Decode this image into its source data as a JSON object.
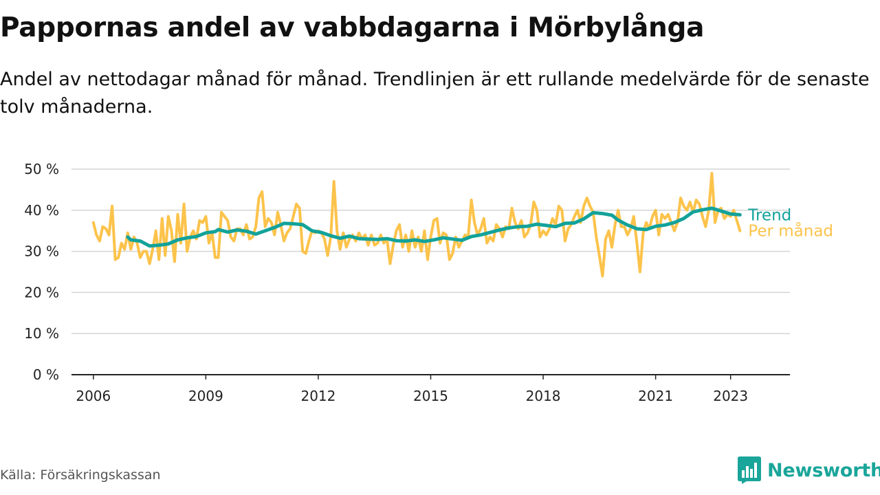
{
  "header": {
    "title": "Pappornas andel av vabbdagarna i Mörbylånga",
    "subtitle": "Andel av nettodagar månad för månad. Trendlinjen är ett rullande medelvärde för de senaste tolv månaderna."
  },
  "footer": {
    "source": "Källa: Försäkringskassan",
    "brand": "Newsworthy"
  },
  "colors": {
    "monthly": "#fcc34b",
    "trend": "#13a29a",
    "grid": "#d4d4d4",
    "axis": "#222222",
    "text": "#111111",
    "source": "#555555",
    "brand": "#1aa59a"
  },
  "chart_data": {
    "type": "line",
    "title": "Pappornas andel av vabbdagarna i Mörbylånga",
    "xlabel": "",
    "ylabel": "",
    "xlim": [
      "2005-06",
      "2024-08"
    ],
    "ylim": [
      0,
      50
    ],
    "y_unit": " %",
    "grid": "horizontal",
    "legend": "inline labels at right end of lines",
    "x_ticks": [
      "2006",
      "2009",
      "2012",
      "2015",
      "2018",
      "2021",
      "2023"
    ],
    "y_ticks": [
      0,
      10,
      20,
      30,
      40,
      50
    ],
    "series": [
      {
        "name": "Per månad",
        "color": "#fcc34b",
        "points": [
          [
            "2006-01",
            37.0
          ],
          [
            "2006-02",
            34.0
          ],
          [
            "2006-03",
            32.5
          ],
          [
            "2006-04",
            36.0
          ],
          [
            "2006-05",
            35.5
          ],
          [
            "2006-06",
            34.0
          ],
          [
            "2006-07",
            41.0
          ],
          [
            "2006-08",
            28.0
          ],
          [
            "2006-09",
            28.5
          ],
          [
            "2006-10",
            32.0
          ],
          [
            "2006-11",
            30.5
          ],
          [
            "2006-12",
            34.5
          ],
          [
            "2007-01",
            30.5
          ],
          [
            "2007-02",
            33.5
          ],
          [
            "2007-03",
            32.0
          ],
          [
            "2007-04",
            28.5
          ],
          [
            "2007-05",
            30.0
          ],
          [
            "2007-06",
            30.0
          ],
          [
            "2007-07",
            27.0
          ],
          [
            "2007-08",
            30.5
          ],
          [
            "2007-09",
            35.0
          ],
          [
            "2007-10",
            28.0
          ],
          [
            "2007-11",
            38.0
          ],
          [
            "2007-12",
            29.0
          ],
          [
            "2008-01",
            38.5
          ],
          [
            "2008-02",
            35.0
          ],
          [
            "2008-03",
            27.5
          ],
          [
            "2008-04",
            39.0
          ],
          [
            "2008-05",
            32.0
          ],
          [
            "2008-06",
            41.5
          ],
          [
            "2008-07",
            30.0
          ],
          [
            "2008-08",
            33.5
          ],
          [
            "2008-09",
            35.0
          ],
          [
            "2008-10",
            33.0
          ],
          [
            "2008-11",
            37.5
          ],
          [
            "2008-12",
            37.0
          ],
          [
            "2009-01",
            38.5
          ],
          [
            "2009-02",
            32.0
          ],
          [
            "2009-03",
            34.5
          ],
          [
            "2009-04",
            28.5
          ],
          [
            "2009-05",
            28.5
          ],
          [
            "2009-06",
            39.5
          ],
          [
            "2009-07",
            38.5
          ],
          [
            "2009-08",
            37.5
          ],
          [
            "2009-09",
            33.5
          ],
          [
            "2009-10",
            32.5
          ],
          [
            "2009-11",
            35.5
          ],
          [
            "2009-12",
            35.5
          ],
          [
            "2010-01",
            34.0
          ],
          [
            "2010-02",
            36.5
          ],
          [
            "2010-03",
            33.0
          ],
          [
            "2010-04",
            33.5
          ],
          [
            "2010-05",
            36.0
          ],
          [
            "2010-06",
            43.0
          ],
          [
            "2010-07",
            44.5
          ],
          [
            "2010-08",
            36.0
          ],
          [
            "2010-09",
            38.0
          ],
          [
            "2010-10",
            37.0
          ],
          [
            "2010-11",
            34.0
          ],
          [
            "2010-12",
            39.5
          ],
          [
            "2011-01",
            36.5
          ],
          [
            "2011-02",
            32.5
          ],
          [
            "2011-03",
            34.5
          ],
          [
            "2011-04",
            35.5
          ],
          [
            "2011-05",
            38.5
          ],
          [
            "2011-06",
            41.5
          ],
          [
            "2011-07",
            40.5
          ],
          [
            "2011-08",
            30.0
          ],
          [
            "2011-09",
            29.5
          ],
          [
            "2011-10",
            32.5
          ],
          [
            "2011-11",
            35.0
          ],
          [
            "2011-12",
            34.5
          ],
          [
            "2012-01",
            35.0
          ],
          [
            "2012-02",
            34.5
          ],
          [
            "2012-03",
            33.0
          ],
          [
            "2012-04",
            29.0
          ],
          [
            "2012-05",
            33.5
          ],
          [
            "2012-06",
            47.0
          ],
          [
            "2012-07",
            35.0
          ],
          [
            "2012-08",
            30.5
          ],
          [
            "2012-09",
            34.5
          ],
          [
            "2012-10",
            31.0
          ],
          [
            "2012-11",
            33.0
          ],
          [
            "2012-12",
            34.0
          ],
          [
            "2013-01",
            32.5
          ],
          [
            "2013-02",
            34.5
          ],
          [
            "2013-03",
            33.0
          ],
          [
            "2013-04",
            34.0
          ],
          [
            "2013-05",
            31.5
          ],
          [
            "2013-06",
            34.0
          ],
          [
            "2013-07",
            31.5
          ],
          [
            "2013-08",
            32.0
          ],
          [
            "2013-09",
            34.0
          ],
          [
            "2013-10",
            32.0
          ],
          [
            "2013-11",
            33.0
          ],
          [
            "2013-12",
            27.0
          ],
          [
            "2014-01",
            31.5
          ],
          [
            "2014-02",
            35.0
          ],
          [
            "2014-03",
            36.5
          ],
          [
            "2014-04",
            31.0
          ],
          [
            "2014-05",
            34.0
          ],
          [
            "2014-06",
            30.0
          ],
          [
            "2014-07",
            35.0
          ],
          [
            "2014-08",
            31.0
          ],
          [
            "2014-09",
            33.5
          ],
          [
            "2014-10",
            30.0
          ],
          [
            "2014-11",
            35.0
          ],
          [
            "2014-12",
            28.0
          ],
          [
            "2015-01",
            33.5
          ],
          [
            "2015-02",
            37.5
          ],
          [
            "2015-03",
            38.0
          ],
          [
            "2015-04",
            32.0
          ],
          [
            "2015-05",
            34.5
          ],
          [
            "2015-06",
            34.0
          ],
          [
            "2015-07",
            28.0
          ],
          [
            "2015-08",
            29.5
          ],
          [
            "2015-09",
            33.5
          ],
          [
            "2015-10",
            31.0
          ],
          [
            "2015-11",
            32.5
          ],
          [
            "2015-12",
            34.0
          ],
          [
            "2016-01",
            33.5
          ],
          [
            "2016-02",
            42.5
          ],
          [
            "2016-03",
            37.0
          ],
          [
            "2016-04",
            34.0
          ],
          [
            "2016-05",
            35.5
          ],
          [
            "2016-06",
            38.0
          ],
          [
            "2016-07",
            32.0
          ],
          [
            "2016-08",
            33.5
          ],
          [
            "2016-09",
            32.5
          ],
          [
            "2016-10",
            36.5
          ],
          [
            "2016-11",
            35.5
          ],
          [
            "2016-12",
            33.5
          ],
          [
            "2017-01",
            36.0
          ],
          [
            "2017-02",
            35.5
          ],
          [
            "2017-03",
            40.5
          ],
          [
            "2017-04",
            37.0
          ],
          [
            "2017-05",
            35.5
          ],
          [
            "2017-06",
            37.5
          ],
          [
            "2017-07",
            33.5
          ],
          [
            "2017-08",
            34.5
          ],
          [
            "2017-09",
            36.5
          ],
          [
            "2017-10",
            42.0
          ],
          [
            "2017-11",
            40.0
          ],
          [
            "2017-12",
            33.5
          ],
          [
            "2018-01",
            35.0
          ],
          [
            "2018-02",
            34.0
          ],
          [
            "2018-03",
            35.5
          ],
          [
            "2018-04",
            38.0
          ],
          [
            "2018-05",
            36.5
          ],
          [
            "2018-06",
            41.0
          ],
          [
            "2018-07",
            40.0
          ],
          [
            "2018-08",
            32.5
          ],
          [
            "2018-09",
            35.5
          ],
          [
            "2018-10",
            36.5
          ],
          [
            "2018-11",
            38.5
          ],
          [
            "2018-12",
            40.0
          ],
          [
            "2019-01",
            37.0
          ],
          [
            "2019-02",
            41.0
          ],
          [
            "2019-03",
            43.0
          ],
          [
            "2019-04",
            41.0
          ],
          [
            "2019-05",
            39.5
          ],
          [
            "2019-06",
            33.5
          ],
          [
            "2019-07",
            29.0
          ],
          [
            "2019-08",
            24.0
          ],
          [
            "2019-09",
            33.0
          ],
          [
            "2019-10",
            35.0
          ],
          [
            "2019-11",
            31.0
          ],
          [
            "2019-12",
            36.5
          ],
          [
            "2020-01",
            40.0
          ],
          [
            "2020-02",
            36.0
          ],
          [
            "2020-03",
            36.0
          ],
          [
            "2020-04",
            34.0
          ],
          [
            "2020-05",
            35.5
          ],
          [
            "2020-06",
            38.5
          ],
          [
            "2020-07",
            32.0
          ],
          [
            "2020-08",
            25.0
          ],
          [
            "2020-09",
            34.5
          ],
          [
            "2020-10",
            37.0
          ],
          [
            "2020-11",
            35.5
          ],
          [
            "2020-12",
            38.5
          ],
          [
            "2021-01",
            40.0
          ],
          [
            "2021-02",
            34.0
          ],
          [
            "2021-03",
            39.0
          ],
          [
            "2021-04",
            38.0
          ],
          [
            "2021-05",
            39.0
          ],
          [
            "2021-06",
            37.0
          ],
          [
            "2021-07",
            35.0
          ],
          [
            "2021-08",
            37.0
          ],
          [
            "2021-09",
            43.0
          ],
          [
            "2021-10",
            41.0
          ],
          [
            "2021-11",
            40.0
          ],
          [
            "2021-12",
            42.0
          ],
          [
            "2022-01",
            39.5
          ],
          [
            "2022-02",
            42.5
          ],
          [
            "2022-03",
            41.5
          ],
          [
            "2022-04",
            38.5
          ],
          [
            "2022-05",
            36.0
          ],
          [
            "2022-06",
            40.0
          ],
          [
            "2022-07",
            49.0
          ],
          [
            "2022-08",
            37.0
          ],
          [
            "2022-09",
            40.0
          ],
          [
            "2022-10",
            40.5
          ],
          [
            "2022-11",
            38.0
          ],
          [
            "2022-12",
            39.0
          ],
          [
            "2023-01",
            38.5
          ],
          [
            "2023-02",
            40.0
          ],
          [
            "2023-03",
            37.5
          ],
          [
            "2023-04",
            35.0
          ]
        ]
      },
      {
        "name": "Trend",
        "color": "#13a29a",
        "points": [
          [
            "2006-12",
            33.5
          ],
          [
            "2007-01",
            32.8
          ],
          [
            "2007-04",
            32.5
          ],
          [
            "2007-07",
            31.3
          ],
          [
            "2007-10",
            31.5
          ],
          [
            "2008-01",
            31.8
          ],
          [
            "2008-04",
            32.8
          ],
          [
            "2008-07",
            33.3
          ],
          [
            "2008-10",
            33.6
          ],
          [
            "2009-01",
            34.5
          ],
          [
            "2009-04",
            34.8
          ],
          [
            "2009-05",
            35.3
          ],
          [
            "2009-08",
            34.7
          ],
          [
            "2009-11",
            35.2
          ],
          [
            "2010-02",
            34.9
          ],
          [
            "2010-05",
            34.2
          ],
          [
            "2010-08",
            35.0
          ],
          [
            "2010-11",
            35.8
          ],
          [
            "2011-02",
            36.8
          ],
          [
            "2011-05",
            36.7
          ],
          [
            "2011-08",
            36.5
          ],
          [
            "2011-11",
            35.0
          ],
          [
            "2012-02",
            34.6
          ],
          [
            "2012-05",
            33.8
          ],
          [
            "2012-08",
            33.2
          ],
          [
            "2012-11",
            33.7
          ],
          [
            "2013-02",
            33.1
          ],
          [
            "2013-05",
            33.0
          ],
          [
            "2013-08",
            32.9
          ],
          [
            "2013-11",
            33.1
          ],
          [
            "2014-02",
            32.6
          ],
          [
            "2014-05",
            32.5
          ],
          [
            "2014-08",
            32.8
          ],
          [
            "2014-11",
            32.4
          ],
          [
            "2015-02",
            32.8
          ],
          [
            "2015-05",
            33.3
          ],
          [
            "2015-08",
            33.0
          ],
          [
            "2015-11",
            32.7
          ],
          [
            "2016-02",
            33.6
          ],
          [
            "2016-05",
            34.0
          ],
          [
            "2016-08",
            34.6
          ],
          [
            "2016-11",
            35.2
          ],
          [
            "2017-02",
            35.7
          ],
          [
            "2017-05",
            36.0
          ],
          [
            "2017-08",
            36.1
          ],
          [
            "2017-11",
            36.6
          ],
          [
            "2018-02",
            36.3
          ],
          [
            "2018-05",
            36.0
          ],
          [
            "2018-08",
            36.8
          ],
          [
            "2018-11",
            36.9
          ],
          [
            "2019-02",
            37.9
          ],
          [
            "2019-05",
            39.4
          ],
          [
            "2019-08",
            39.2
          ],
          [
            "2019-11",
            38.8
          ],
          [
            "2020-01",
            37.6
          ],
          [
            "2020-04",
            36.4
          ],
          [
            "2020-07",
            35.5
          ],
          [
            "2020-10",
            35.3
          ],
          [
            "2021-01",
            36.1
          ],
          [
            "2021-04",
            36.4
          ],
          [
            "2021-07",
            37.0
          ],
          [
            "2021-10",
            38.0
          ],
          [
            "2022-01",
            39.6
          ],
          [
            "2022-04",
            40.1
          ],
          [
            "2022-07",
            40.5
          ],
          [
            "2022-10",
            39.8
          ],
          [
            "2023-01",
            39.1
          ],
          [
            "2023-04",
            38.9
          ]
        ]
      }
    ]
  }
}
